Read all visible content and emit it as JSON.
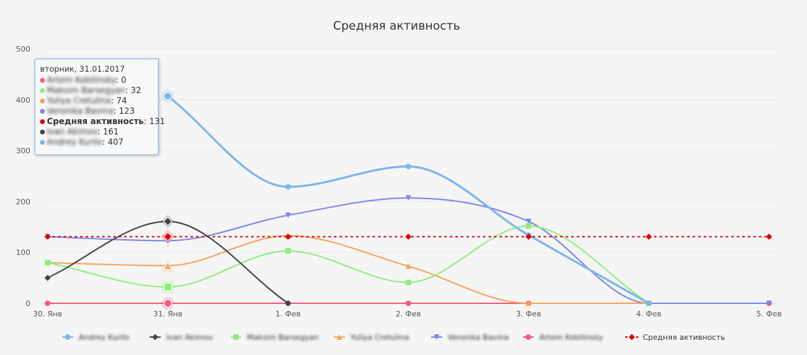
{
  "chart_data": {
    "type": "line",
    "title": "Средняя активность",
    "categories": [
      "30. Янв",
      "31. Янв",
      "1. Фев",
      "2. Фев",
      "3. Фев",
      "4. Фев",
      "5. Фев"
    ],
    "ylim": [
      0,
      500
    ],
    "yticks": [
      0,
      100,
      200,
      300,
      400,
      500
    ],
    "grid": true,
    "legend_position": "bottom",
    "series": [
      {
        "name": "Andrey Kurilo",
        "color": "#7cb5ec",
        "marker": "circle",
        "line": "solid",
        "values": [
          null,
          407,
          229,
          269,
          134,
          0,
          null
        ]
      },
      {
        "name": "Ivan Akimov",
        "color": "#434348",
        "marker": "diamond",
        "line": "solid",
        "values": [
          50,
          161,
          0,
          null,
          null,
          null,
          null
        ]
      },
      {
        "name": "Maksim Barsegyan",
        "color": "#90ed7d",
        "marker": "square",
        "line": "solid",
        "values": [
          80,
          32,
          103,
          41,
          152,
          0,
          null
        ]
      },
      {
        "name": "Yuliya Cretulina",
        "color": "#f7a35c",
        "marker": "triangle",
        "line": "solid",
        "values": [
          80,
          74,
          133,
          73,
          0,
          0,
          null
        ]
      },
      {
        "name": "Veronika Bavina",
        "color": "#8085e9",
        "marker": "triangle-down",
        "line": "solid",
        "values": [
          131,
          123,
          173,
          207,
          161,
          0,
          0
        ]
      },
      {
        "name": "Artem Kobilinsky",
        "color": "#f15c80",
        "marker": "circle",
        "line": "solid",
        "values": [
          0,
          0,
          0,
          0,
          0,
          0,
          0
        ]
      },
      {
        "name": "Средняя активность",
        "color": "#e00000",
        "marker": "diamond",
        "line": "dotted",
        "values": [
          131,
          131,
          131,
          131,
          131,
          131,
          131
        ]
      }
    ],
    "highlighted_category_index": 1,
    "tooltip": {
      "header": "вторник, 31.01.2017",
      "rows": [
        {
          "name": "Artem Kobilinsky",
          "value": "0",
          "color": "#f15c80",
          "bold": false,
          "blur": true
        },
        {
          "name": "Maksim Barsegyan",
          "value": "32",
          "color": "#90ed7d",
          "bold": false,
          "blur": true
        },
        {
          "name": "Yuliya Cretulina",
          "value": "74",
          "color": "#f7a35c",
          "bold": false,
          "blur": true
        },
        {
          "name": "Veronika Bavina",
          "value": "123",
          "color": "#8085e9",
          "bold": false,
          "blur": true
        },
        {
          "name": "Средняя активность",
          "value": "131",
          "color": "#e00000",
          "bold": true,
          "blur": false
        },
        {
          "name": "Ivan Akimov",
          "value": "161",
          "color": "#434348",
          "bold": false,
          "blur": true
        },
        {
          "name": "Andrey Kurilo",
          "value": "407",
          "color": "#7cb5ec",
          "bold": false,
          "blur": true
        }
      ]
    }
  }
}
